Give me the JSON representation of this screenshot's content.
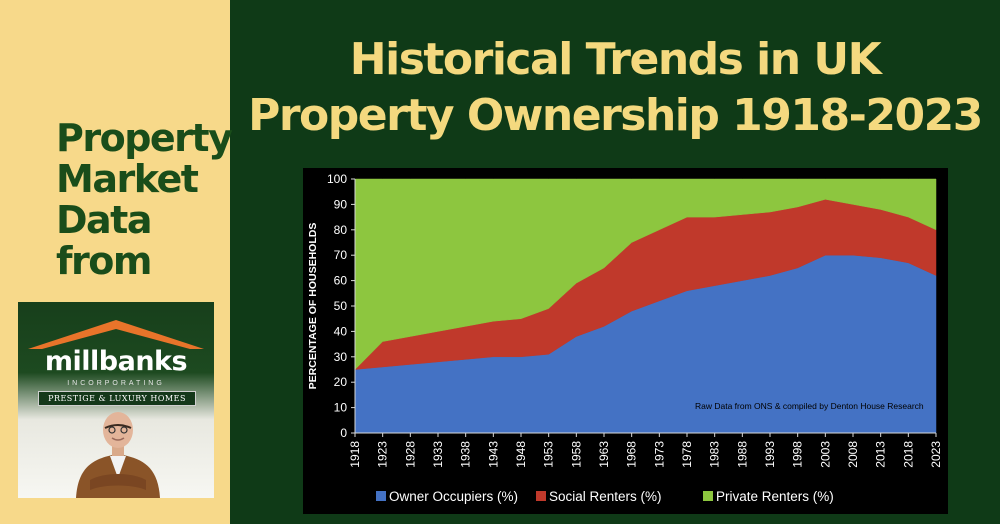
{
  "sidebar": {
    "heading_lines": [
      "Property",
      "Market",
      "Data",
      "from"
    ]
  },
  "logo": {
    "name": "millbanks",
    "sub": "INCORPORATING",
    "banner": "PRESTIGE & LUXURY HOMES"
  },
  "title_lines": [
    "Historical Trends in UK",
    "Property Ownership 1918-2023"
  ],
  "chart_data": {
    "type": "area",
    "stacked": true,
    "ylabel": "PERCENTAGE OF HOUSEHOLDS",
    "ylim": [
      0,
      100
    ],
    "yticks": [
      0,
      10,
      20,
      30,
      40,
      50,
      60,
      70,
      80,
      90,
      100
    ],
    "grid": false,
    "legend": "bottom",
    "annotation": "Raw Data from ONS & compiled by Denton House Research",
    "x": [
      1918,
      1923,
      1928,
      1933,
      1938,
      1943,
      1948,
      1953,
      1958,
      1963,
      1968,
      1973,
      1978,
      1983,
      1988,
      1993,
      1998,
      2003,
      2008,
      2013,
      2018,
      2023
    ],
    "series": [
      {
        "name": "Owner Occupiers (%)",
        "color": "#4472c4",
        "values": [
          25,
          26,
          27,
          28,
          29,
          30,
          30,
          31,
          38,
          42,
          48,
          52,
          56,
          58,
          60,
          62,
          65,
          70,
          70,
          69,
          67,
          62
        ]
      },
      {
        "name": "Social Renters (%)",
        "color": "#c0392b",
        "values": [
          0,
          10,
          11,
          12,
          13,
          14,
          15,
          18,
          21,
          23,
          27,
          28,
          29,
          27,
          26,
          25,
          24,
          22,
          20,
          19,
          18,
          18
        ]
      },
      {
        "name": "Private Renters (%)",
        "color": "#8dc63f",
        "values": [
          75,
          64,
          62,
          60,
          58,
          56,
          55,
          51,
          41,
          35,
          25,
          20,
          15,
          15,
          14,
          13,
          11,
          8,
          10,
          12,
          15,
          20
        ]
      }
    ]
  }
}
